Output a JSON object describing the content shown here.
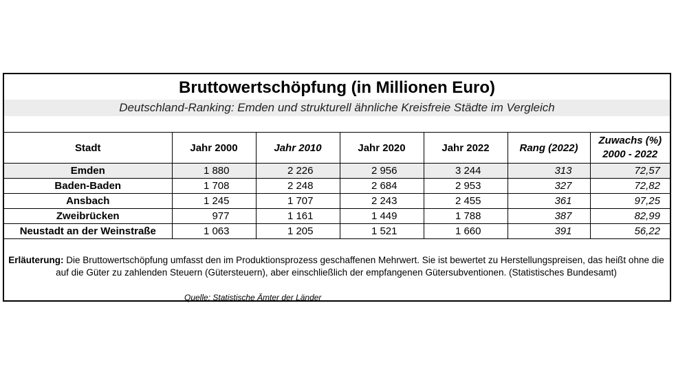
{
  "title": "Bruttowertschöpfung (in Millionen Euro)",
  "subtitle": "Deutschland-Ranking: Emden und strukturell ähnliche Kreisfreie Städte im Vergleich",
  "table": {
    "headers": [
      "Stadt",
      "Jahr 2000",
      "Jahr 2010",
      "Jahr 2020",
      "Jahr 2022",
      "Rang (2022)",
      "Zuwachs (%)",
      "2000 - 2022"
    ],
    "rows": [
      {
        "city": "Emden",
        "y2000": "1 880",
        "y2010": "2 226",
        "y2020": "2 956",
        "y2022": "3 244",
        "rank": "313",
        "growth": "72,57"
      },
      {
        "city": "Baden-Baden",
        "y2000": "1 708",
        "y2010": "2 248",
        "y2020": "2 684",
        "y2022": "2 953",
        "rank": "327",
        "growth": "72,82"
      },
      {
        "city": "Ansbach",
        "y2000": "1 245",
        "y2010": "1 707",
        "y2020": "2 243",
        "y2022": "2 455",
        "rank": "361",
        "growth": "97,25"
      },
      {
        "city": "Zweibrücken",
        "y2000": "977",
        "y2010": "1 161",
        "y2020": "1 449",
        "y2022": "1 788",
        "rank": "387",
        "growth": "82,99"
      },
      {
        "city": "Neustadt an der Weinstraße",
        "y2000": "1 063",
        "y2010": "1 205",
        "y2020": "1 521",
        "y2022": "1 660",
        "rank": "391",
        "growth": "56,22"
      }
    ]
  },
  "note": {
    "label": "Erläuterung:",
    "text": " Die Bruttowertschöpfung  umfasst  den im Produktionsprozess geschaffenen Mehrwert. Sie ist bewertet zu Herstellungspreisen, das heißt ohne die auf die Güter zu zahlenden Steuern (Gütersteuern), aber einschließlich der empfangenen Gütersubventionen.  (Statistisches Bundesamt)"
  },
  "source": "Quelle: Statistische Ämter der Länder",
  "colors": {
    "highlight_row": "#ececec",
    "subtitle_band": "#ececec",
    "border": "#000000"
  }
}
